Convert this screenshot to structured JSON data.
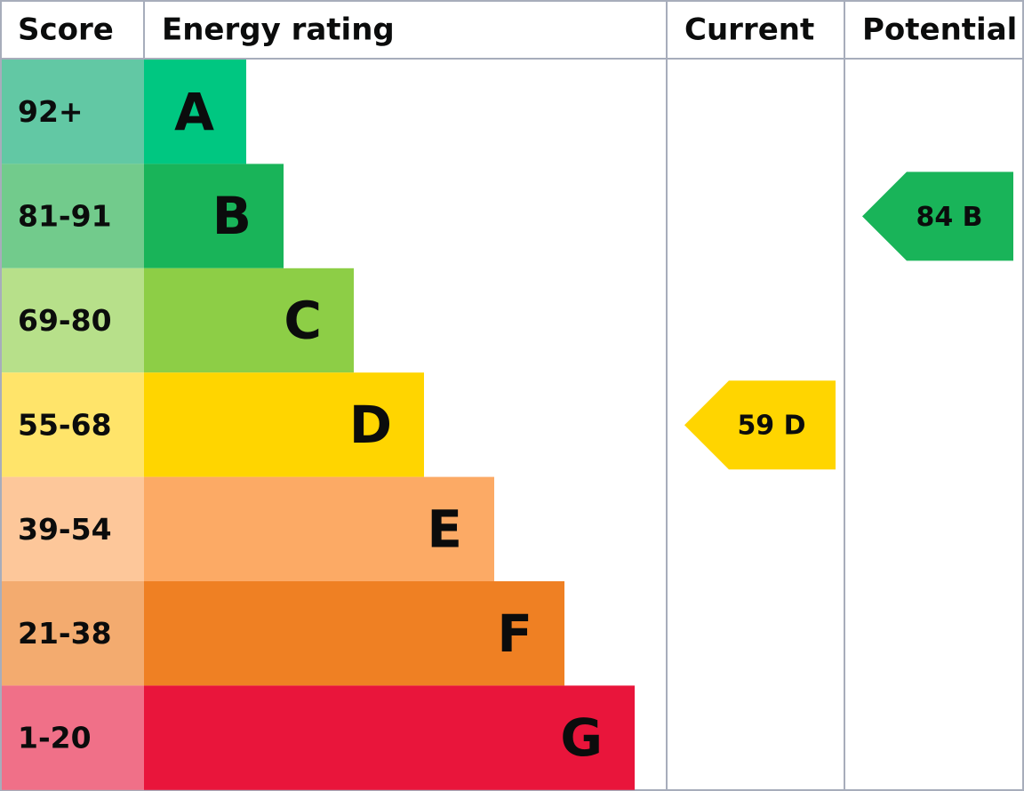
{
  "header": {
    "score": "Score",
    "rating": "Energy rating",
    "current": "Current",
    "potential": "Potential"
  },
  "rows": [
    {
      "score": "92+",
      "letter": "A",
      "color": "#00c781",
      "score_color": "#62c8a4"
    },
    {
      "score": "81-91",
      "letter": "B",
      "color": "#19b459",
      "score_color": "#72cb8c",
      "potential": "84 B"
    },
    {
      "score": "69-80",
      "letter": "C",
      "color": "#8dce46",
      "score_color": "#b7e08a"
    },
    {
      "score": "55-68",
      "letter": "D",
      "color": "#ffd500",
      "score_color": "#ffe46a",
      "current": "59 D"
    },
    {
      "score": "39-54",
      "letter": "E",
      "color": "#fcaa65",
      "score_color": "#fdc79a"
    },
    {
      "score": "21-38",
      "letter": "F",
      "color": "#ef8023",
      "score_color": "#f3ab6f"
    },
    {
      "score": "1-20",
      "letter": "G",
      "color": "#e9153b",
      "score_color": "#f07088"
    }
  ]
}
